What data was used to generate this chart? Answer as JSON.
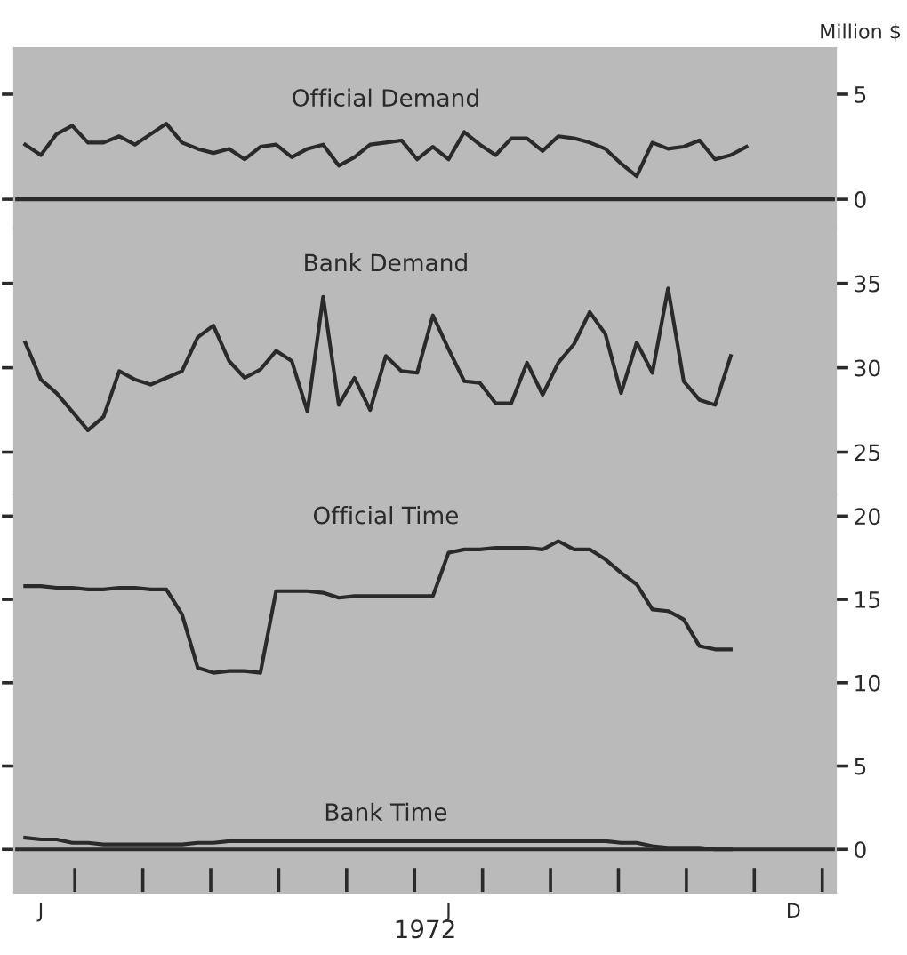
{
  "chart_data": [
    {
      "type": "line",
      "ylabel": "Million $",
      "categories": [
        null,
        null,
        null,
        null,
        null,
        null,
        null,
        null,
        null,
        null,
        null,
        null,
        null,
        null,
        null,
        null,
        null,
        null,
        null,
        null,
        null,
        null,
        null,
        null,
        null,
        null,
        null,
        null,
        null,
        null,
        null,
        null,
        null,
        null,
        null,
        null,
        null,
        null,
        null,
        null,
        null,
        null,
        null,
        null,
        null,
        null,
        null,
        null,
        null,
        null,
        null,
        null
      ],
      "ylim": [
        -1.35,
        7.2
      ],
      "yticks": [
        0,
        5
      ],
      "tick_labels": "y",
      "grid": false,
      "marker": "none",
      "line_style": "solid",
      "ref_lines": [
        {
          "axis": "y",
          "value": 0,
          "color": "#2a2a2a"
        }
      ],
      "series": [
        {
          "name": "Official Demand",
          "color": "#2a2a2a",
          "values": [
            2.6,
            2.1,
            3.1,
            3.5,
            2.7,
            2.7,
            3.0,
            2.6,
            3.1,
            3.6,
            2.7,
            2.4,
            2.2,
            2.4,
            1.9,
            2.5,
            2.6,
            2.0,
            2.4,
            2.6,
            1.6,
            2.0,
            2.6,
            2.7,
            2.8,
            1.9,
            2.5,
            1.9,
            3.2,
            2.6,
            2.1,
            2.9,
            2.9,
            2.3,
            3.0,
            2.9,
            2.7,
            2.4,
            1.7,
            1.1,
            2.7,
            2.4,
            2.5,
            2.8,
            1.9,
            2.1,
            2.5,
            null,
            null,
            null,
            null,
            null
          ]
        }
      ]
    },
    {
      "type": "line",
      "categories": [
        null,
        null,
        null,
        null,
        null,
        null,
        null,
        null,
        null,
        null,
        null,
        null,
        null,
        null,
        null,
        null,
        null,
        null,
        null,
        null,
        null,
        null,
        null,
        null,
        null,
        null,
        null,
        null,
        null,
        null,
        null,
        null,
        null,
        null,
        null,
        null,
        null,
        null,
        null,
        null,
        null,
        null,
        null,
        null,
        null,
        null,
        null,
        null,
        null,
        null,
        null,
        null
      ],
      "ylim": [
        22.5,
        38.3
      ],
      "yticks": [
        25,
        30,
        35
      ],
      "tick_labels": "y",
      "grid": false,
      "marker": "none",
      "line_style": "solid",
      "series": [
        {
          "name": "Bank Demand",
          "color": "#2a2a2a",
          "values": [
            31.5,
            29.3,
            28.5,
            27.4,
            26.3,
            27.1,
            29.8,
            29.3,
            29.0,
            29.4,
            29.8,
            31.8,
            32.5,
            30.4,
            29.4,
            29.9,
            31.0,
            30.4,
            27.4,
            34.2,
            27.8,
            29.4,
            27.5,
            30.7,
            29.8,
            29.7,
            33.1,
            31.1,
            29.2,
            29.1,
            27.9,
            27.9,
            30.3,
            28.4,
            30.3,
            31.4,
            33.3,
            32.0,
            28.5,
            31.5,
            29.7,
            34.7,
            29.2,
            28.1,
            27.8,
            30.7,
            null,
            null,
            null,
            null,
            null,
            null
          ]
        }
      ]
    },
    {
      "type": "line",
      "xlabel": "1972",
      "categories": [
        null,
        "J",
        null,
        null,
        null,
        null,
        null,
        null,
        null,
        null,
        null,
        null,
        null,
        null,
        null,
        null,
        null,
        null,
        null,
        null,
        null,
        null,
        null,
        null,
        null,
        null,
        null,
        "J",
        null,
        null,
        null,
        null,
        null,
        null,
        null,
        null,
        null,
        null,
        null,
        null,
        null,
        null,
        null,
        null,
        null,
        null,
        null,
        null,
        null,
        "D",
        null,
        null
      ],
      "ylim": [
        -2.6,
        21.3
      ],
      "yticks": [
        0,
        5,
        10,
        15,
        20
      ],
      "grid": false,
      "marker": "none",
      "line_style": "solid",
      "ref_lines": [
        {
          "axis": "y",
          "value": 0,
          "color": "#2a2a2a"
        }
      ],
      "series": [
        {
          "name": "Official Time",
          "color": "#2a2a2a",
          "values": [
            15.8,
            15.8,
            15.7,
            15.7,
            15.6,
            15.6,
            15.7,
            15.7,
            15.6,
            15.6,
            14.1,
            10.9,
            10.6,
            10.7,
            10.7,
            10.6,
            15.5,
            15.5,
            15.5,
            15.4,
            15.1,
            15.2,
            15.2,
            15.2,
            15.2,
            15.2,
            15.2,
            17.8,
            18.0,
            18.0,
            18.1,
            18.1,
            18.1,
            18.0,
            18.5,
            18.0,
            18.0,
            17.4,
            16.6,
            15.9,
            14.4,
            14.3,
            13.8,
            12.2,
            12.0,
            12.0,
            null,
            null,
            null,
            null,
            null,
            null
          ]
        },
        {
          "name": "Bank Time",
          "color": "#2a2a2a",
          "values": [
            0.7,
            0.6,
            0.6,
            0.4,
            0.4,
            0.3,
            0.3,
            0.3,
            0.3,
            0.3,
            0.3,
            0.4,
            0.4,
            0.5,
            0.5,
            0.5,
            0.5,
            0.5,
            0.5,
            0.5,
            0.5,
            0.5,
            0.5,
            0.5,
            0.5,
            0.5,
            0.5,
            0.5,
            0.5,
            0.5,
            0.5,
            0.5,
            0.5,
            0.5,
            0.5,
            0.5,
            0.5,
            0.5,
            0.4,
            0.4,
            0.2,
            0.1,
            0.1,
            0.1,
            0.0,
            0.0,
            null,
            null,
            null,
            null,
            null,
            null
          ]
        }
      ]
    }
  ]
}
